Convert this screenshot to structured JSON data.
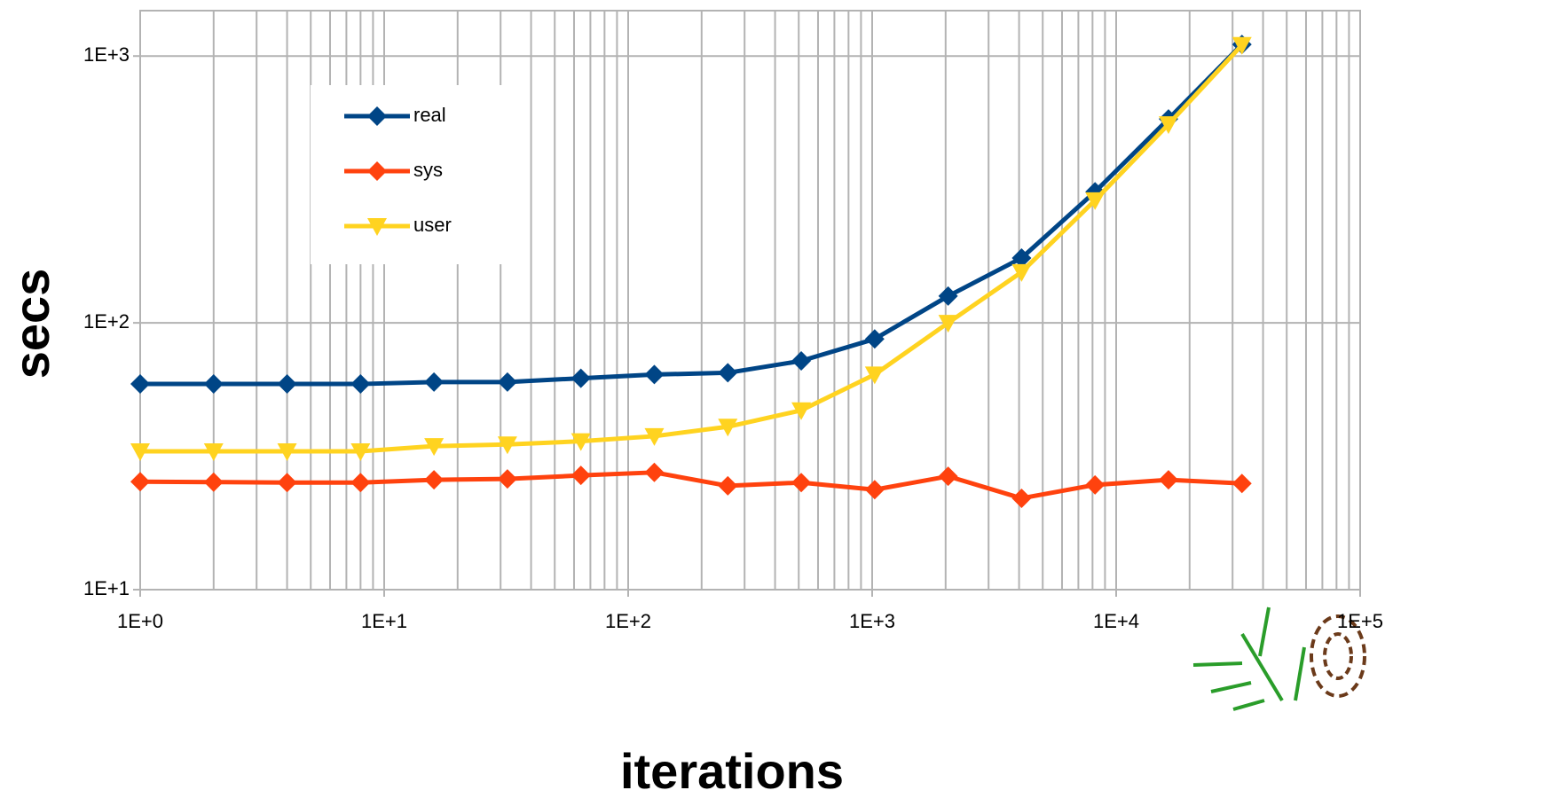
{
  "chart_data": {
    "type": "line",
    "x_label": "iterations",
    "y_label": "secs",
    "x": [
      1,
      2,
      4,
      8,
      16,
      32,
      64,
      128,
      256,
      512,
      1024,
      2048,
      4096,
      8192,
      16384,
      32768
    ],
    "series": [
      {
        "name": "real",
        "color": "#004586",
        "marker": "diamond",
        "values": [
          59,
          59,
          59,
          59,
          60,
          60,
          62,
          64,
          65,
          72,
          87,
          126,
          175,
          310,
          581,
          1105
        ]
      },
      {
        "name": "sys",
        "color": "#ff420e",
        "marker": "diamond",
        "values": [
          25.4,
          25.3,
          25.2,
          25.2,
          25.8,
          26,
          26.8,
          27.5,
          24.5,
          25.2,
          23.7,
          26.6,
          22,
          24.7,
          25.8,
          25
        ]
      },
      {
        "name": "user",
        "color": "#ffd320",
        "marker": "triangle-down",
        "values": [
          33,
          33,
          33,
          33,
          34.5,
          35,
          36,
          37.6,
          40.8,
          47,
          64,
          100,
          155,
          288,
          555,
          1100
        ]
      }
    ],
    "xscale": "log",
    "yscale": "log",
    "xlim": [
      1,
      100000
    ],
    "ylim": [
      10,
      1480
    ],
    "xticks": [
      {
        "value": 1,
        "label": "1E+0"
      },
      {
        "value": 10,
        "label": "1E+1"
      },
      {
        "value": 100,
        "label": "1E+2"
      },
      {
        "value": 1000,
        "label": "1E+3"
      },
      {
        "value": 10000,
        "label": "1E+4"
      },
      {
        "value": 100000,
        "label": "1E+5"
      }
    ],
    "x_minor_ticks": [
      2,
      3,
      4,
      5,
      6,
      7,
      8,
      9,
      20,
      30,
      40,
      50,
      60,
      70,
      80,
      90,
      200,
      300,
      400,
      500,
      600,
      700,
      800,
      900,
      2000,
      3000,
      4000,
      5000,
      6000,
      7000,
      8000,
      9000,
      20000,
      30000,
      40000,
      50000,
      60000,
      70000,
      80000,
      90000
    ],
    "yticks": [
      {
        "value": 10,
        "label": "1E+1"
      },
      {
        "value": 100,
        "label": "1E+2"
      },
      {
        "value": 1000,
        "label": "1E+3"
      }
    ],
    "grid": true,
    "legend": "upper-left"
  }
}
